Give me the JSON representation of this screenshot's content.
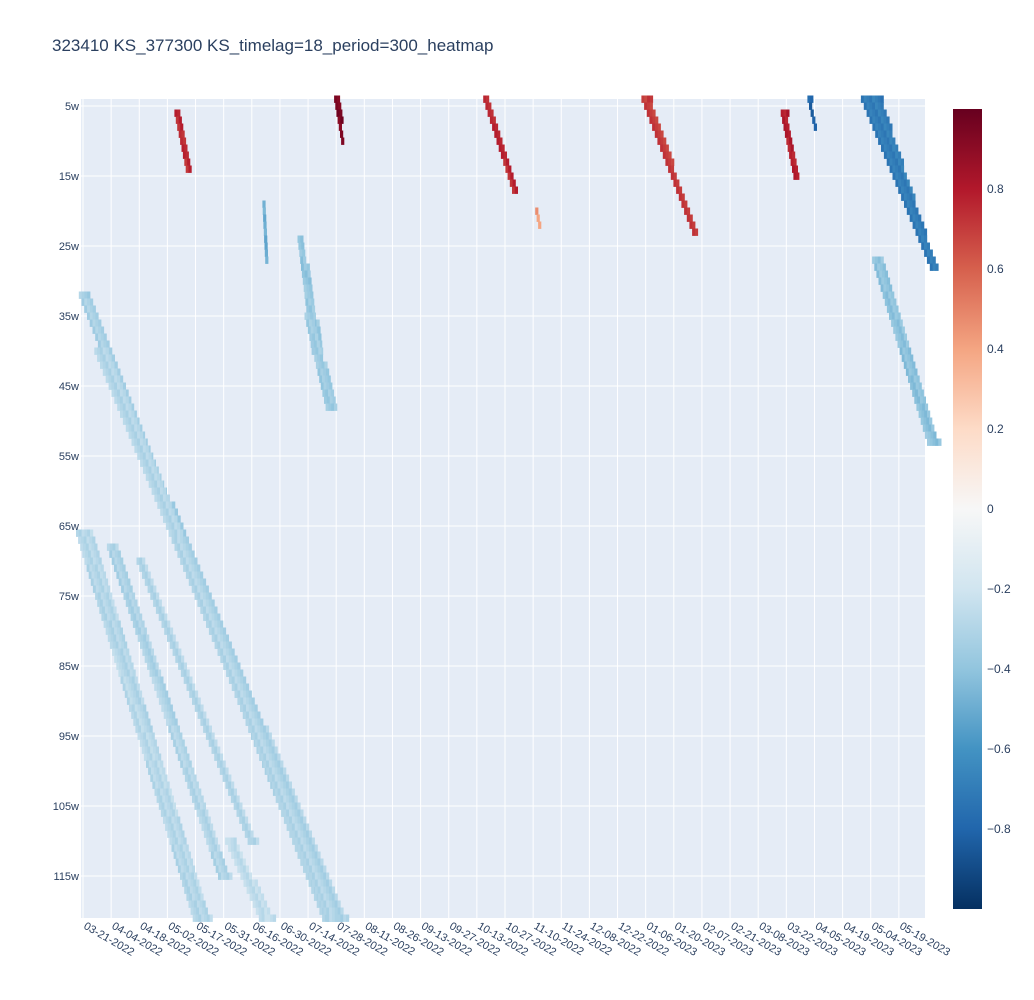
{
  "chart_data": {
    "type": "heatmap",
    "title": "323410 KS_377300 KS_timelag=18_period=300_heatmap",
    "xlabel": "",
    "ylabel": "",
    "x_ticks": [
      "03-21-2022",
      "04-04-2022",
      "04-18-2022",
      "05-02-2022",
      "05-17-2022",
      "05-31-2022",
      "06-16-2022",
      "06-30-2022",
      "07-14-2022",
      "07-28-2022",
      "08-11-2022",
      "08-26-2022",
      "09-13-2022",
      "09-27-2022",
      "10-13-2022",
      "10-27-2022",
      "11-10-2022",
      "11-24-2022",
      "12-08-2022",
      "12-22-2022",
      "01-06-2023",
      "01-20-2023",
      "02-07-2023",
      "02-21-2023",
      "03-08-2023",
      "03-22-2023",
      "04-05-2023",
      "04-19-2023",
      "05-04-2023",
      "05-19-2023"
    ],
    "y_ticks": [
      "5w",
      "15w",
      "25w",
      "35w",
      "45w",
      "55w",
      "65w",
      "75w",
      "85w",
      "95w",
      "105w",
      "115w"
    ],
    "y_range": [
      4,
      121
    ],
    "colorscale": "RdBu",
    "color_range": [
      -1,
      1
    ],
    "colorbar_ticks": [
      {
        "value": 0.8,
        "label": "0.8"
      },
      {
        "value": 0.6,
        "label": "0.6"
      },
      {
        "value": 0.4,
        "label": "0.4"
      },
      {
        "value": 0.2,
        "label": "0.2"
      },
      {
        "value": 0,
        "label": "0"
      },
      {
        "value": -0.2,
        "label": "−0.2"
      },
      {
        "value": -0.4,
        "label": "−0.4"
      },
      {
        "value": -0.6,
        "label": "−0.6"
      },
      {
        "value": -0.8,
        "label": "−0.8"
      }
    ],
    "colorbar_stops": [
      "#053061",
      "#2166ac",
      "#4393c3",
      "#92c5de",
      "#d1e5f0",
      "#f7f7f7",
      "#fddbc7",
      "#f4a582",
      "#d6604d",
      "#b2182b",
      "#67001f"
    ],
    "grid": true,
    "legend": "colorbar-right",
    "streaks": [
      {
        "x0": 0.0,
        "y0": 32,
        "x1": 8.8,
        "y1": 121,
        "w0": 0.3,
        "w1": 0.6,
        "value": -0.33
      },
      {
        "x0": 0.6,
        "y0": 40,
        "x1": 9.0,
        "y1": 121,
        "w0": 0.4,
        "w1": 0.7,
        "value": -0.3
      },
      {
        "x0": 0.0,
        "y0": 66,
        "x1": 4.2,
        "y1": 121,
        "w0": 0.5,
        "w1": 0.6,
        "value": -0.28
      },
      {
        "x0": 1.0,
        "y0": 68,
        "x1": 5.0,
        "y1": 115,
        "w0": 0.3,
        "w1": 0.4,
        "value": -0.3
      },
      {
        "x0": 2.0,
        "y0": 70,
        "x1": 6.0,
        "y1": 110,
        "w0": 0.2,
        "w1": 0.3,
        "value": -0.28
      },
      {
        "x0": 5.2,
        "y0": 110,
        "x1": 6.5,
        "y1": 121,
        "w0": 0.3,
        "w1": 0.5,
        "value": -0.25
      },
      {
        "x0": 7.7,
        "y0": 24,
        "x1": 8.3,
        "y1": 40,
        "w0": 0.15,
        "w1": 0.35,
        "value": -0.38
      },
      {
        "x0": 8.0,
        "y0": 35,
        "x1": 8.8,
        "y1": 48,
        "w0": 0.25,
        "w1": 0.35,
        "value": -0.35
      },
      {
        "x0": 6.4,
        "y0": 19,
        "x1": 6.5,
        "y1": 27,
        "w0": 0.05,
        "w1": 0.05,
        "value": -0.48
      },
      {
        "x0": 3.3,
        "y0": 6,
        "x1": 3.7,
        "y1": 14,
        "w0": 0.1,
        "w1": 0.1,
        "value": 0.75
      },
      {
        "x0": 9.0,
        "y0": 4,
        "x1": 9.2,
        "y1": 10,
        "w0": 0.15,
        "w1": 0.05,
        "value": 0.95
      },
      {
        "x0": 14.3,
        "y0": 4,
        "x1": 15.3,
        "y1": 17,
        "w0": 0.15,
        "w1": 0.1,
        "value": 0.75
      },
      {
        "x0": 16.1,
        "y0": 20,
        "x1": 16.2,
        "y1": 22,
        "w0": 0.05,
        "w1": 0.05,
        "value": 0.45
      },
      {
        "x0": 20.0,
        "y0": 4,
        "x1": 21.7,
        "y1": 23,
        "w0": 0.3,
        "w1": 0.1,
        "value": 0.7
      },
      {
        "x0": 24.9,
        "y0": 6,
        "x1": 25.3,
        "y1": 15,
        "w0": 0.2,
        "w1": 0.1,
        "value": 0.8
      },
      {
        "x0": 25.8,
        "y0": 4,
        "x1": 26.0,
        "y1": 8,
        "w0": 0.1,
        "w1": 0.05,
        "value": -0.8
      },
      {
        "x0": 28.0,
        "y0": 4,
        "x1": 30.2,
        "y1": 28,
        "w0": 0.7,
        "w1": 0.2,
        "value": -0.7
      },
      {
        "x0": 28.2,
        "y0": 27,
        "x1": 30.2,
        "y1": 53,
        "w0": 0.3,
        "w1": 0.4,
        "value": -0.4
      }
    ]
  }
}
